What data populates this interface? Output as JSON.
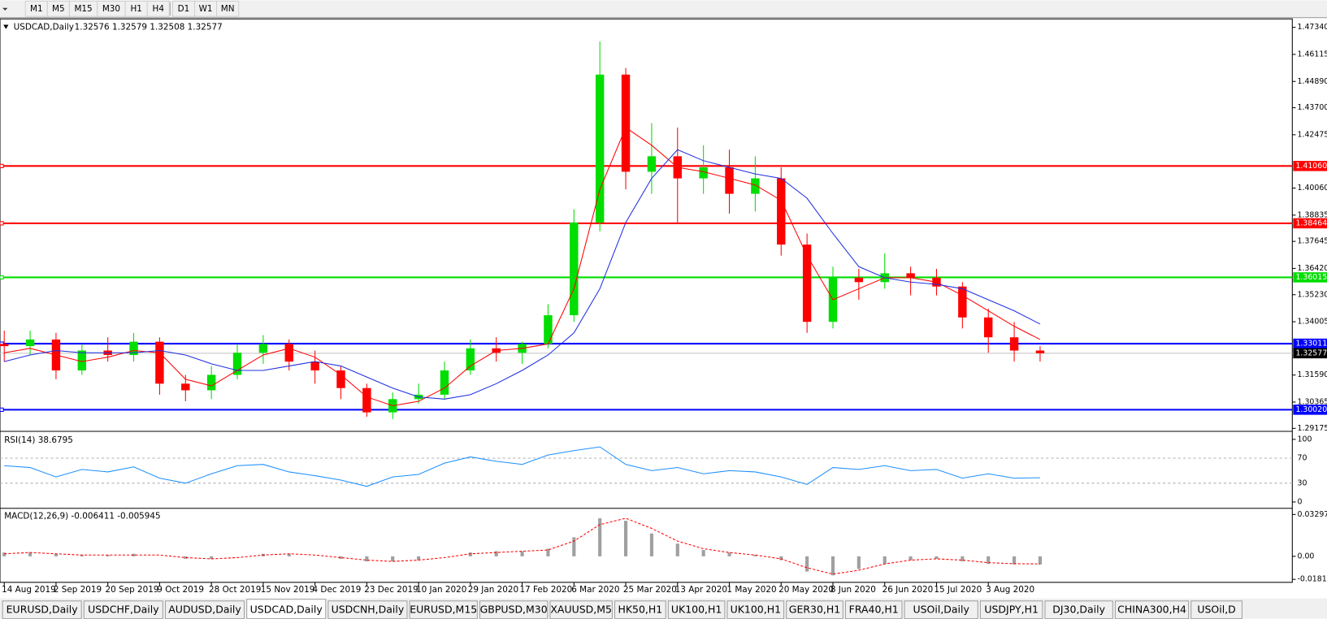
{
  "toolbar": {
    "timeframes": [
      "M1",
      "M5",
      "M15",
      "M30",
      "H1",
      "H4",
      "D1",
      "W1",
      "MN"
    ]
  },
  "tabs": [
    "EURUSD,Daily",
    "USDCHF,Daily",
    "AUDUSD,Daily",
    "USDCAD,Daily",
    "USDCNH,Daily",
    "EURUSD,M15",
    "GBPUSD,M30",
    "XAUUSD,M5",
    "HK50,H1",
    "UK100,H1",
    "UK100,H1",
    "GER30,H1",
    "FRA40,H1",
    "USOil,Daily",
    "USDJPY,H1",
    "DJ30,Daily",
    "CHINA300,H4",
    "USOil,D"
  ],
  "active_tab": 3,
  "chart_data": {
    "type": "candlestick",
    "title": "USDCAD,Daily",
    "quote": "1.32576 1.32579 1.32508 1.32577",
    "categories": [
      "14 Aug 2019",
      null,
      "2 Sep 2019",
      null,
      "20 Sep 2019",
      null,
      "9 Oct 2019",
      null,
      "28 Oct 2019",
      null,
      "15 Nov 2019",
      null,
      "4 Dec 2019",
      null,
      "23 Dec 2019",
      null,
      "10 Jan 2020",
      null,
      "29 Jan 2020",
      null,
      "17 Feb 2020",
      null,
      "6 Mar 2020",
      null,
      "25 Mar 2020",
      null,
      "13 Apr 2020",
      null,
      "1 May 2020",
      null,
      "20 May 2020",
      null,
      "8 Jun 2020",
      null,
      "26 Jun 2020",
      null,
      "15 Jul 2020",
      null,
      "3 Aug 2020",
      null,
      null
    ],
    "open": [
      1.33,
      1.329,
      1.332,
      1.318,
      1.327,
      1.325,
      1.331,
      1.312,
      1.309,
      1.316,
      1.326,
      1.33,
      1.322,
      1.318,
      1.31,
      1.299,
      1.305,
      1.307,
      1.318,
      1.328,
      1.326,
      1.33,
      1.343,
      1.385,
      1.452,
      1.408,
      1.415,
      1.405,
      1.41,
      1.398,
      1.405,
      1.375,
      1.34,
      1.36,
      1.358,
      1.362,
      1.36,
      1.356,
      1.342,
      1.333,
      1.327
    ],
    "high": [
      1.336,
      1.336,
      1.335,
      1.33,
      1.333,
      1.335,
      1.333,
      1.316,
      1.32,
      1.33,
      1.334,
      1.332,
      1.327,
      1.32,
      1.312,
      1.308,
      1.312,
      1.322,
      1.332,
      1.333,
      1.331,
      1.348,
      1.391,
      1.467,
      1.455,
      1.43,
      1.428,
      1.42,
      1.418,
      1.415,
      1.41,
      1.38,
      1.365,
      1.364,
      1.371,
      1.365,
      1.364,
      1.358,
      1.346,
      1.34,
      1.329
    ],
    "low": [
      1.322,
      1.325,
      1.314,
      1.316,
      1.322,
      1.322,
      1.307,
      1.304,
      1.305,
      1.314,
      1.321,
      1.318,
      1.312,
      1.305,
      1.297,
      1.296,
      1.303,
      1.305,
      1.316,
      1.322,
      1.321,
      1.328,
      1.34,
      1.381,
      1.4,
      1.398,
      1.385,
      1.398,
      1.389,
      1.39,
      1.37,
      1.335,
      1.337,
      1.35,
      1.355,
      1.352,
      1.352,
      1.337,
      1.326,
      1.322,
      1.322
    ],
    "close": [
      1.329,
      1.332,
      1.318,
      1.327,
      1.325,
      1.331,
      1.312,
      1.309,
      1.316,
      1.326,
      1.33,
      1.322,
      1.318,
      1.31,
      1.299,
      1.305,
      1.307,
      1.318,
      1.328,
      1.326,
      1.33,
      1.343,
      1.385,
      1.452,
      1.408,
      1.415,
      1.405,
      1.41,
      1.398,
      1.405,
      1.375,
      1.34,
      1.36,
      1.358,
      1.362,
      1.36,
      1.356,
      1.342,
      1.333,
      1.327,
      1.32577
    ],
    "up_color": "#00dd00",
    "down_color": "#ff0000",
    "moving_averages": [
      {
        "color": "#ff0000",
        "values": [
          1.326,
          1.328,
          1.325,
          1.322,
          1.324,
          1.327,
          1.326,
          1.314,
          1.311,
          1.318,
          1.325,
          1.328,
          1.324,
          1.316,
          1.306,
          1.302,
          1.304,
          1.31,
          1.32,
          1.327,
          1.328,
          1.33,
          1.355,
          1.4,
          1.428,
          1.42,
          1.41,
          1.408,
          1.405,
          1.402,
          1.395,
          1.37,
          1.35,
          1.355,
          1.36,
          1.36,
          1.358,
          1.352,
          1.345,
          1.338,
          1.332
        ]
      },
      {
        "color": "#2030e0",
        "values": [
          1.322,
          1.325,
          1.327,
          1.326,
          1.326,
          1.326,
          1.327,
          1.325,
          1.321,
          1.318,
          1.318,
          1.32,
          1.322,
          1.32,
          1.315,
          1.31,
          1.306,
          1.305,
          1.307,
          1.312,
          1.318,
          1.325,
          1.335,
          1.355,
          1.385,
          1.405,
          1.418,
          1.413,
          1.41,
          1.407,
          1.405,
          1.396,
          1.38,
          1.365,
          1.36,
          1.358,
          1.357,
          1.355,
          1.35,
          1.345,
          1.339
        ]
      }
    ],
    "levels": [
      {
        "value": 1.4106,
        "label": "1.41060",
        "color": "#ff0000"
      },
      {
        "value": 1.38464,
        "label": "1.38464",
        "color": "#ff0000"
      },
      {
        "value": 1.36015,
        "label": "1.36015",
        "color": "#00dd00"
      },
      {
        "value": 1.33011,
        "label": "1.33011",
        "color": "#0000ff"
      },
      {
        "value": 1.3002,
        "label": "1.30020",
        "color": "#0000ff"
      }
    ],
    "current": {
      "value": 1.32577,
      "label": "1.32577"
    },
    "ylim": [
      1.29175,
      1.4734
    ],
    "yticks": [
      {
        "value": 1.4734,
        "label": "1.47340"
      },
      {
        "value": 1.46115,
        "label": "1.46115"
      },
      {
        "value": 1.4489,
        "label": "1.44890"
      },
      {
        "value": 1.437,
        "label": "1.43700"
      },
      {
        "value": 1.42475,
        "label": "1.42475"
      },
      {
        "value": 1.4006,
        "label": "1.40060"
      },
      {
        "value": 1.38835,
        "label": "1.38835"
      },
      {
        "value": 1.37645,
        "label": "1.37645"
      },
      {
        "value": 1.3642,
        "label": "1.36420"
      },
      {
        "value": 1.3523,
        "label": "1.35230"
      },
      {
        "value": 1.34005,
        "label": "1.34005"
      },
      {
        "value": 1.3159,
        "label": "1.31590"
      },
      {
        "value": 1.30365,
        "label": "1.30365"
      },
      {
        "value": 1.29175,
        "label": "1.29175"
      }
    ],
    "rsi": {
      "title": "RSI(14) 38.6795",
      "color": "#1e90ff",
      "ylim": [
        0,
        100
      ],
      "yticks": [
        0,
        30,
        70,
        100
      ],
      "values": [
        58,
        55,
        40,
        52,
        48,
        56,
        38,
        30,
        45,
        58,
        60,
        48,
        42,
        35,
        25,
        40,
        44,
        62,
        72,
        65,
        60,
        75,
        82,
        88,
        60,
        50,
        55,
        45,
        50,
        48,
        40,
        28,
        55,
        52,
        58,
        50,
        52,
        38,
        45,
        38,
        38.6795
      ]
    },
    "macd": {
      "title": "MACD(12,26,9) -0.006411 -0.005945",
      "hist_color": "#a0a0a0",
      "signal_color": "#ff0000",
      "ylim": [
        -0.0205,
        0.0355
      ],
      "yticks": [
        0.032972,
        {
          "value": 0,
          "label": "0.00"
        },
        -0.01815
      ],
      "histogram": [
        0.003,
        0.003,
        0.002,
        0.001,
        0.001,
        0.002,
        0,
        -0.002,
        -0.002,
        0,
        0.002,
        0.002,
        0,
        -0.002,
        -0.004,
        -0.004,
        -0.003,
        0,
        0.003,
        0.004,
        0.004,
        0.006,
        0.015,
        0.03,
        0.028,
        0.018,
        0.01,
        0.005,
        0.003,
        0.001,
        -0.003,
        -0.012,
        -0.015,
        -0.01,
        -0.006,
        -0.003,
        -0.002,
        -0.004,
        -0.006,
        -0.0064,
        -0.006411
      ],
      "signal": [
        0.002,
        0.003,
        0.002,
        0.001,
        0.001,
        0.001,
        0.001,
        -0.001,
        -0.002,
        -0.001,
        0.001,
        0.002,
        0.001,
        -0.001,
        -0.003,
        -0.004,
        -0.003,
        -0.001,
        0.002,
        0.003,
        0.004,
        0.005,
        0.012,
        0.025,
        0.03,
        0.022,
        0.012,
        0.006,
        0.003,
        0.001,
        -0.002,
        -0.009,
        -0.014,
        -0.011,
        -0.006,
        -0.003,
        -0.002,
        -0.003,
        -0.005,
        -0.0058,
        -0.005945
      ]
    }
  }
}
